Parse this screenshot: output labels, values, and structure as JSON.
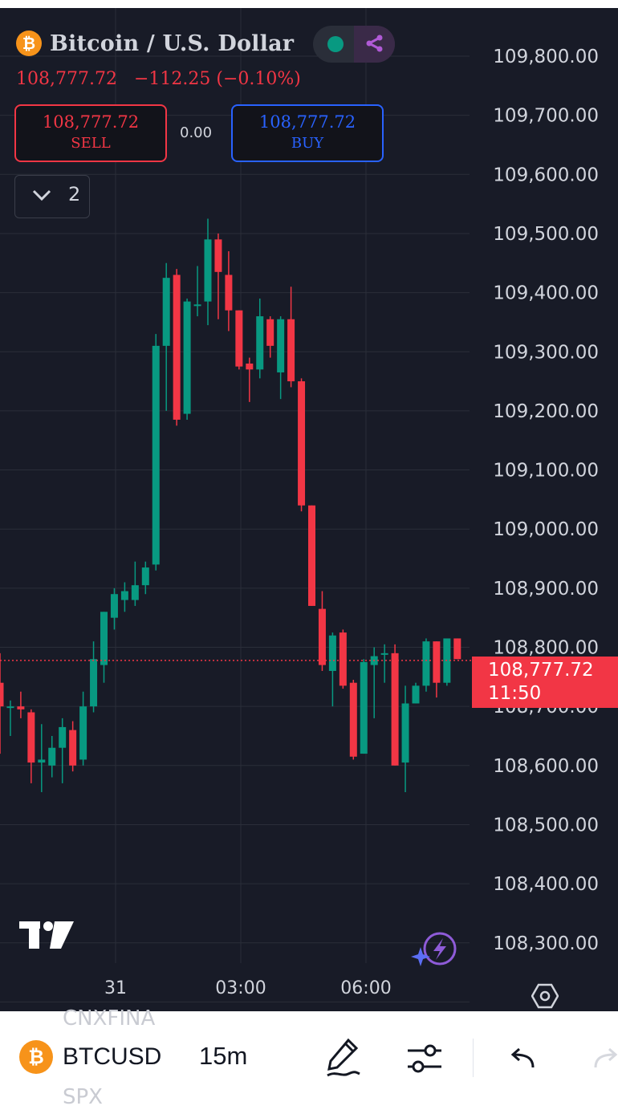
{
  "header": {
    "symbol_icon": "bitcoin-icon",
    "title": "Bitcoin / U.S. Dollar",
    "last_price": "108,777.72",
    "change": "−112.25 (−0.10%)",
    "status_color": "#089981"
  },
  "trade": {
    "sell_price": "108,777.72",
    "sell_label": "SELL",
    "spread": "0.00",
    "buy_price": "108,777.72",
    "buy_label": "BUY"
  },
  "indicators": {
    "count": "2"
  },
  "price_axis": {
    "labels": [
      "109,800.00",
      "109,700.00",
      "109,600.00",
      "109,500.00",
      "109,400.00",
      "109,300.00",
      "109,200.00",
      "109,100.00",
      "109,000.00",
      "108,900.00",
      "108,800.00",
      "108,700.00",
      "108,600.00",
      "108,500.00",
      "108,400.00",
      "108,300.00"
    ]
  },
  "time_axis": {
    "labels": [
      "31",
      "03:00",
      "06:00"
    ]
  },
  "price_label": {
    "price": "108,777.72",
    "countdown": "11:50"
  },
  "colors": {
    "up": "#089981",
    "down": "#f23645",
    "background": "#181b27",
    "grid": "#2a2e39"
  },
  "chart_data": {
    "type": "candlestick",
    "symbol": "BTCUSD",
    "interval": "15m",
    "ylim": [
      108250,
      109850
    ],
    "current_price": 108777.72,
    "candles": [
      {
        "o": 108740,
        "h": 108790,
        "l": 108620,
        "c": 108700
      },
      {
        "o": 108700,
        "h": 108710,
        "l": 108650,
        "c": 108700
      },
      {
        "o": 108700,
        "h": 108725,
        "l": 108680,
        "c": 108695
      },
      {
        "o": 108690,
        "h": 108695,
        "l": 108570,
        "c": 108605
      },
      {
        "o": 108605,
        "h": 108670,
        "l": 108555,
        "c": 108610
      },
      {
        "o": 108600,
        "h": 108650,
        "l": 108580,
        "c": 108630
      },
      {
        "o": 108630,
        "h": 108680,
        "l": 108570,
        "c": 108665
      },
      {
        "o": 108660,
        "h": 108675,
        "l": 108590,
        "c": 108600
      },
      {
        "o": 108610,
        "h": 108725,
        "l": 108600,
        "c": 108700
      },
      {
        "o": 108700,
        "h": 108810,
        "l": 108690,
        "c": 108780
      },
      {
        "o": 108770,
        "h": 108860,
        "l": 108740,
        "c": 108860
      },
      {
        "o": 108850,
        "h": 108900,
        "l": 108830,
        "c": 108890
      },
      {
        "o": 108880,
        "h": 108910,
        "l": 108860,
        "c": 108895
      },
      {
        "o": 108880,
        "h": 108945,
        "l": 108870,
        "c": 108905
      },
      {
        "o": 108905,
        "h": 108945,
        "l": 108890,
        "c": 108935
      },
      {
        "o": 108940,
        "h": 109330,
        "l": 108930,
        "c": 109310
      },
      {
        "o": 109310,
        "h": 109450,
        "l": 109200,
        "c": 109425
      },
      {
        "o": 109430,
        "h": 109440,
        "l": 109175,
        "c": 109185
      },
      {
        "o": 109195,
        "h": 109390,
        "l": 109185,
        "c": 109385
      },
      {
        "o": 109380,
        "h": 109445,
        "l": 109360,
        "c": 109380
      },
      {
        "o": 109385,
        "h": 109525,
        "l": 109345,
        "c": 109490
      },
      {
        "o": 109490,
        "h": 109500,
        "l": 109355,
        "c": 109435
      },
      {
        "o": 109430,
        "h": 109470,
        "l": 109335,
        "c": 109370
      },
      {
        "o": 109370,
        "h": 109370,
        "l": 109270,
        "c": 109275
      },
      {
        "o": 109280,
        "h": 109290,
        "l": 109215,
        "c": 109270
      },
      {
        "o": 109270,
        "h": 109390,
        "l": 109255,
        "c": 109360
      },
      {
        "o": 109355,
        "h": 109360,
        "l": 109290,
        "c": 109310
      },
      {
        "o": 109265,
        "h": 109360,
        "l": 109220,
        "c": 109355
      },
      {
        "o": 109355,
        "h": 109410,
        "l": 109240,
        "c": 109250
      },
      {
        "o": 109250,
        "h": 109255,
        "l": 109030,
        "c": 109040
      },
      {
        "o": 109040,
        "h": 109040,
        "l": 108870,
        "c": 108870
      },
      {
        "o": 108865,
        "h": 108895,
        "l": 108760,
        "c": 108770
      },
      {
        "o": 108760,
        "h": 108825,
        "l": 108700,
        "c": 108820
      },
      {
        "o": 108825,
        "h": 108830,
        "l": 108730,
        "c": 108735
      },
      {
        "o": 108740,
        "h": 108745,
        "l": 108610,
        "c": 108615
      },
      {
        "o": 108620,
        "h": 108780,
        "l": 108620,
        "c": 108775
      },
      {
        "o": 108770,
        "h": 108800,
        "l": 108680,
        "c": 108785
      },
      {
        "o": 108790,
        "h": 108805,
        "l": 108740,
        "c": 108790
      },
      {
        "o": 108790,
        "h": 108805,
        "l": 108600,
        "c": 108600
      },
      {
        "o": 108605,
        "h": 108735,
        "l": 108555,
        "c": 108705
      },
      {
        "o": 108705,
        "h": 108740,
        "l": 108705,
        "c": 108735
      },
      {
        "o": 108735,
        "h": 108815,
        "l": 108725,
        "c": 108810
      },
      {
        "o": 108810,
        "h": 108810,
        "l": 108715,
        "c": 108740
      },
      {
        "o": 108740,
        "h": 108810,
        "l": 108735,
        "c": 108815
      },
      {
        "o": 108815,
        "h": 108815,
        "l": 108780,
        "c": 108780
      }
    ]
  },
  "toolbar": {
    "ghost_top": "CNXFINA",
    "symbol_icon": "bitcoin-icon",
    "symbol": "BTCUSD",
    "interval": "15m",
    "ghost_bottom": "SPX",
    "draw_icon": "pen-icon",
    "settings_icon": "sliders-icon",
    "undo_icon": "undo-icon",
    "redo_icon": "redo-icon"
  }
}
